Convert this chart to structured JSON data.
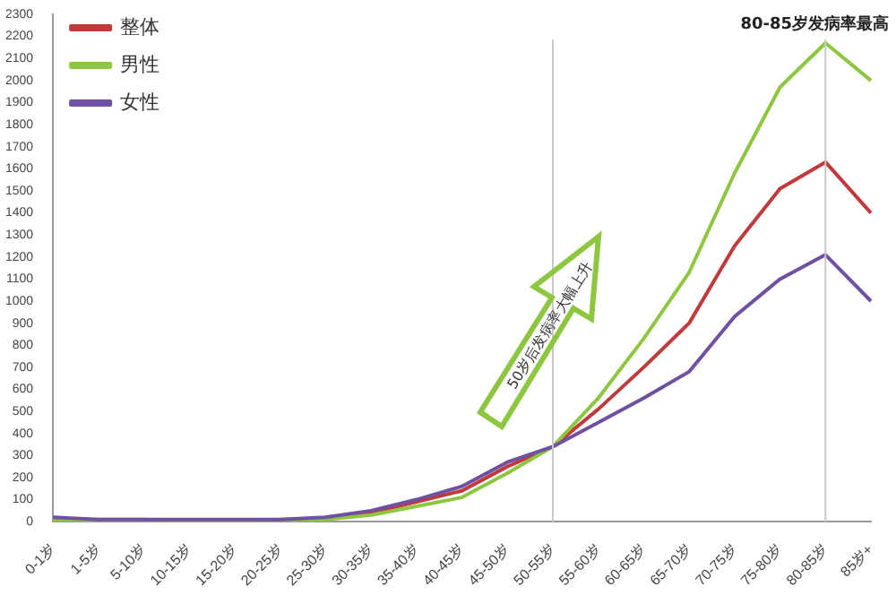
{
  "chart_data": {
    "type": "line",
    "categories": [
      "0-1岁",
      "1-5岁",
      "5-10岁",
      "10-15岁",
      "15-20岁",
      "20-25岁",
      "25-30岁",
      "30-35岁",
      "35-40岁",
      "40-45岁",
      "45-50岁",
      "50-55岁",
      "55-60岁",
      "60-65岁",
      "65-70岁",
      "70-75岁",
      "75-80岁",
      "80-85岁",
      "85岁+"
    ],
    "series": [
      {
        "name": "整体",
        "color": "#c0393b",
        "values": [
          null,
          null,
          null,
          null,
          null,
          null,
          20,
          40,
          90,
          140,
          250,
          340,
          510,
          700,
          900,
          1250,
          1510,
          1630,
          1400
        ]
      },
      {
        "name": "男性",
        "color": "#8dc73f",
        "values": [
          10,
          10,
          10,
          0,
          0,
          10,
          10,
          30,
          70,
          110,
          220,
          340,
          560,
          830,
          1130,
          1580,
          1970,
          2170,
          2000
        ]
      },
      {
        "name": "女性",
        "color": "#7050a0",
        "values": [
          20,
          10,
          10,
          10,
          10,
          10,
          20,
          50,
          100,
          160,
          270,
          340,
          450,
          560,
          680,
          930,
          1100,
          1210,
          1000
        ]
      }
    ],
    "ylim": [
      0,
      2300
    ],
    "yticks": [
      0,
      100,
      200,
      300,
      400,
      500,
      600,
      700,
      800,
      900,
      1000,
      1100,
      1200,
      1300,
      1400,
      1500,
      1600,
      1700,
      1800,
      1900,
      2000,
      2100,
      2200,
      2300
    ],
    "grid": false,
    "legend": "top left",
    "marker": "none",
    "line_style": "solid",
    "ref_lines": [
      {
        "axis": "x",
        "value": "50-55岁",
        "label": null,
        "color": "#c8c8c8"
      },
      {
        "axis": "x",
        "value": "80-85岁",
        "label": "80-85岁发病率最高",
        "color": "#c8c8c8"
      }
    ],
    "annotations": [
      "50岁后发病率大幅上升"
    ]
  }
}
